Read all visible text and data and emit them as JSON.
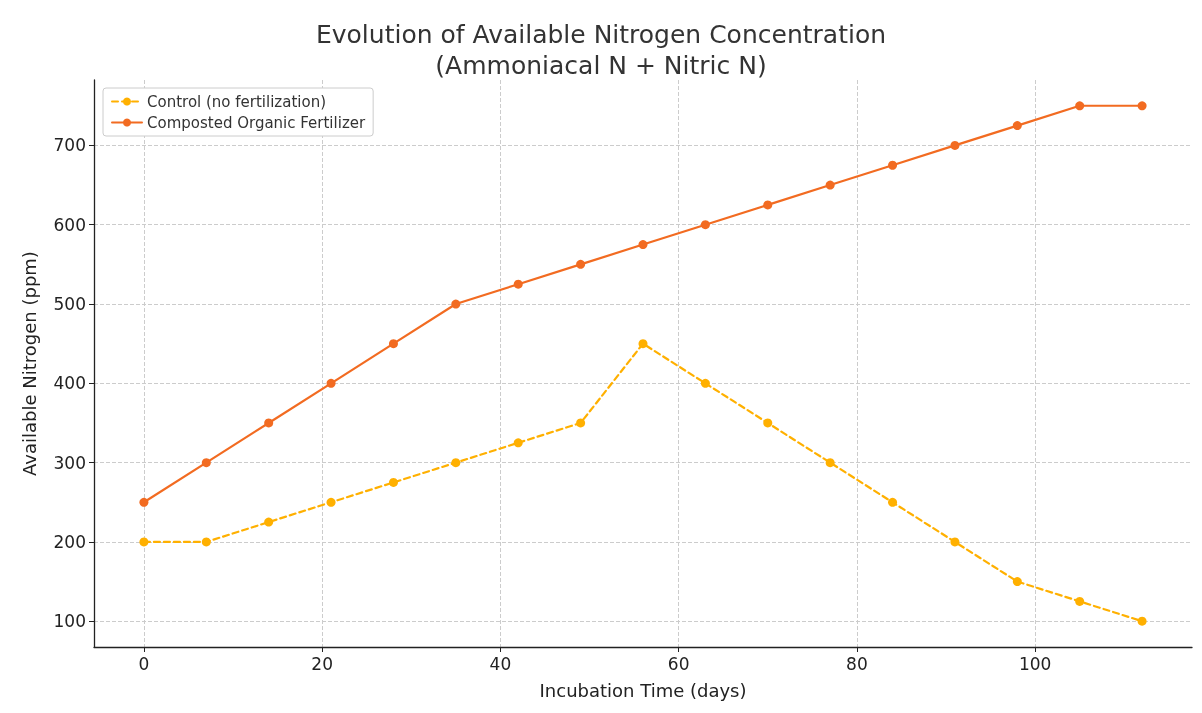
{
  "chart_data": {
    "type": "line",
    "title": "Evolution of Available Nitrogen Concentration\n(Ammoniacal N + Nitric N)",
    "xlabel": "Incubation Time (days)",
    "ylabel": "Available Nitrogen (ppm)",
    "x": [
      0,
      7,
      14,
      21,
      28,
      35,
      42,
      49,
      56,
      63,
      70,
      77,
      84,
      91,
      98,
      105,
      112
    ],
    "series": [
      {
        "name": "Control (no fertilization)",
        "color": "#ffb000",
        "line_style": "dashed",
        "values": [
          200,
          200,
          225,
          250,
          275,
          300,
          325,
          350,
          450,
          400,
          350,
          300,
          250,
          200,
          150,
          125,
          100
        ]
      },
      {
        "name": "Composted Organic Fertilizer",
        "color": "#f26b21",
        "line_style": "solid",
        "values": [
          250,
          300,
          350,
          400,
          450,
          500,
          525,
          550,
          575,
          600,
          625,
          650,
          675,
          700,
          725,
          750,
          750
        ]
      }
    ],
    "xlim": [
      -5.6,
      117.6
    ],
    "ylim": [
      67.5,
      782.5
    ],
    "xticks": [
      0,
      20,
      40,
      60,
      80,
      100
    ],
    "yticks": [
      100,
      200,
      300,
      400,
      500,
      600,
      700
    ],
    "grid": true,
    "legend": "top left",
    "marker": "circle"
  }
}
